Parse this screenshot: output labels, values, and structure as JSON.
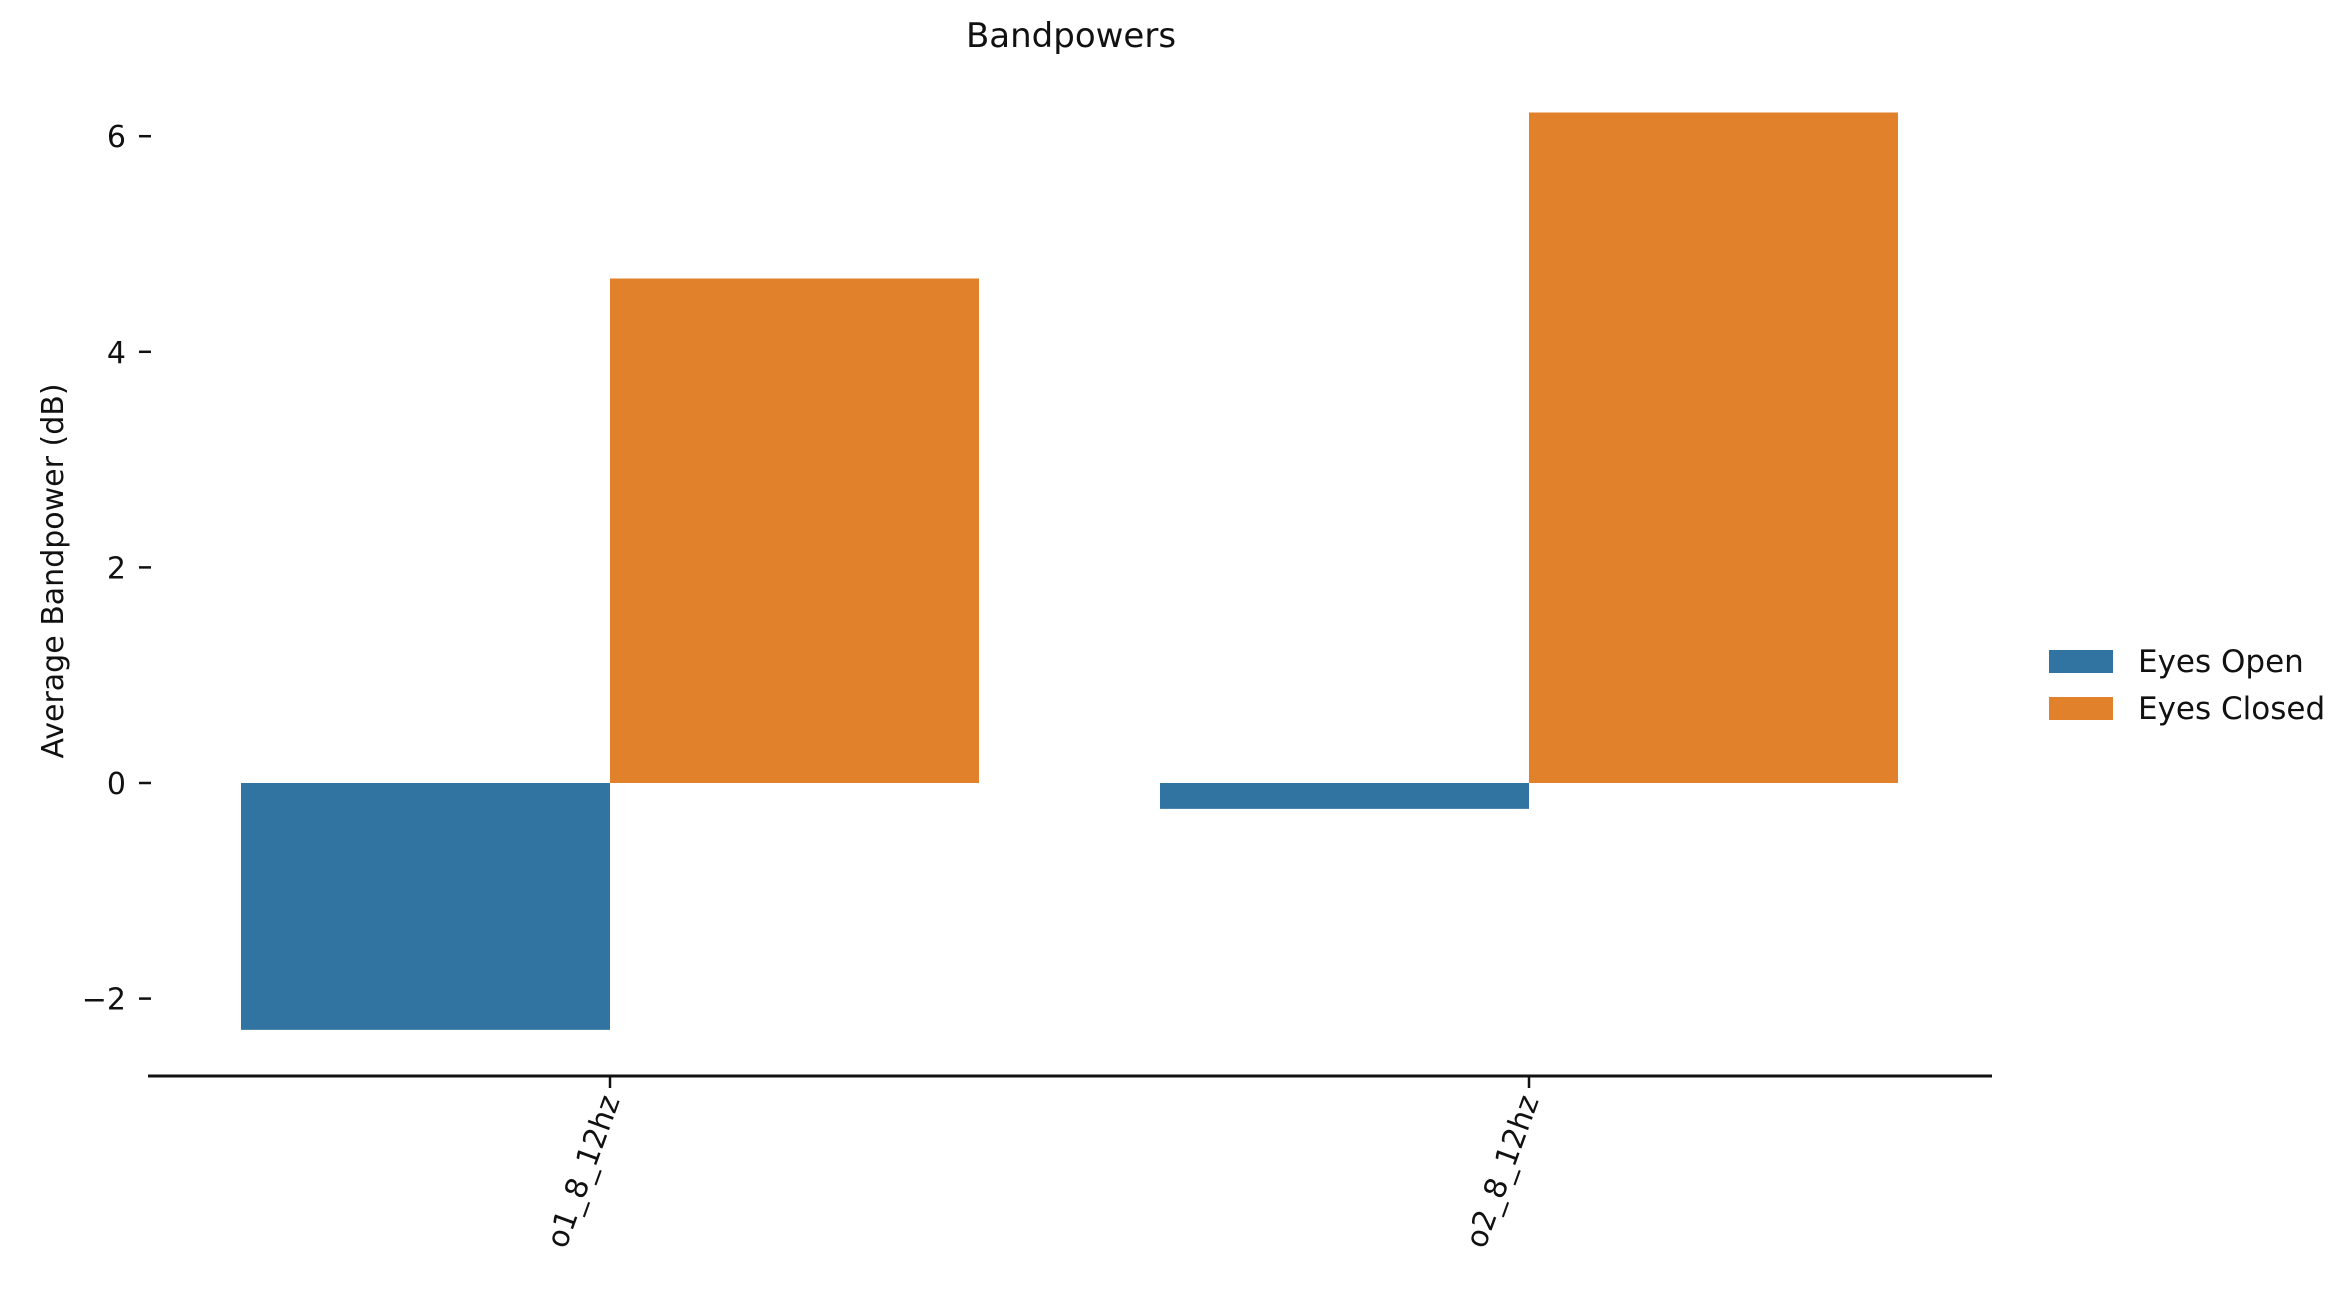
{
  "chart_data": {
    "type": "bar",
    "title": "Bandpowers",
    "xlabel": "",
    "ylabel": "Average Bandpower (dB)",
    "categories": [
      "o1_8_12hz",
      "o2_8_12hz"
    ],
    "series": [
      {
        "name": "Eyes Open",
        "color": "#3274a1",
        "values": [
          -2.29,
          -0.24
        ]
      },
      {
        "name": "Eyes Closed",
        "color": "#e1812c",
        "values": [
          4.68,
          6.22
        ]
      }
    ],
    "ylim": [
      -2.7,
      6.6
    ],
    "yticks": [
      -2,
      0,
      2,
      4,
      6
    ],
    "ytick_labels": [
      "−2",
      "0",
      "2",
      "4",
      "6"
    ],
    "grid": false,
    "legend_position": "right-center"
  }
}
